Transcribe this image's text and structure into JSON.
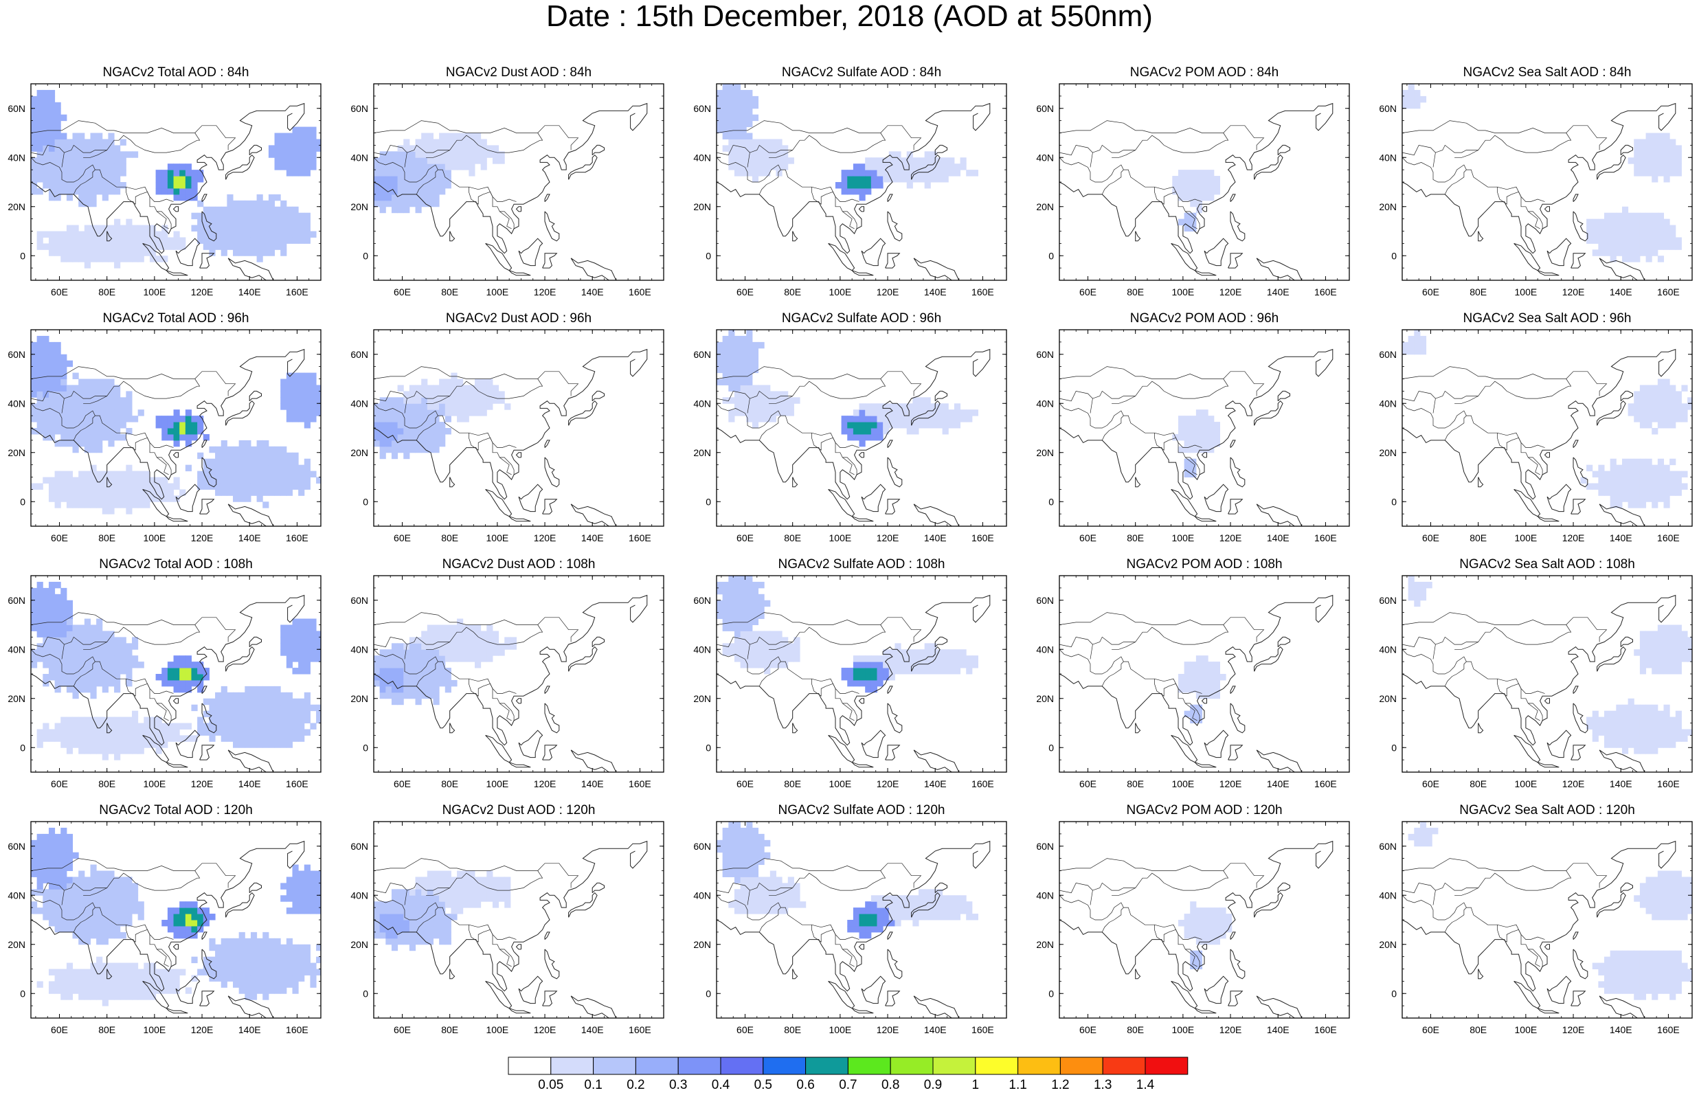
{
  "title": "Date : 15th December, 2018 (AOD at 550nm)",
  "map_extent": {
    "lon_min": 48,
    "lon_max": 170,
    "lat_min": -10,
    "lat_max": 70
  },
  "x_ticks": [
    "60E",
    "80E",
    "100E",
    "120E",
    "140E",
    "160E"
  ],
  "y_ticks": [
    "60N",
    "40N",
    "20N",
    "0"
  ],
  "columns": [
    "Total",
    "Dust",
    "Sulfate",
    "POM",
    "Sea Salt"
  ],
  "rows": [
    "84h",
    "96h",
    "108h",
    "120h"
  ],
  "panels": [
    {
      "title": "NGACv2 Total AOD : 84h",
      "species": "total",
      "hour": 84
    },
    {
      "title": "NGACv2 Dust AOD : 84h",
      "species": "dust",
      "hour": 84
    },
    {
      "title": "NGACv2 Sulfate AOD : 84h",
      "species": "sulfate",
      "hour": 84
    },
    {
      "title": "NGACv2 POM AOD : 84h",
      "species": "pom",
      "hour": 84
    },
    {
      "title": "NGACv2 Sea Salt AOD : 84h",
      "species": "seasalt",
      "hour": 84
    },
    {
      "title": "NGACv2 Total AOD : 96h",
      "species": "total",
      "hour": 96
    },
    {
      "title": "NGACv2 Dust AOD : 96h",
      "species": "dust",
      "hour": 96
    },
    {
      "title": "NGACv2 Sulfate AOD : 96h",
      "species": "sulfate",
      "hour": 96
    },
    {
      "title": "NGACv2 POM AOD : 96h",
      "species": "pom",
      "hour": 96
    },
    {
      "title": "NGACv2 Sea Salt AOD : 96h",
      "species": "seasalt",
      "hour": 96
    },
    {
      "title": "NGACv2 Total AOD : 108h",
      "species": "total",
      "hour": 108
    },
    {
      "title": "NGACv2 Dust AOD : 108h",
      "species": "dust",
      "hour": 108
    },
    {
      "title": "NGACv2 Sulfate AOD : 108h",
      "species": "sulfate",
      "hour": 108
    },
    {
      "title": "NGACv2 POM AOD : 108h",
      "species": "pom",
      "hour": 108
    },
    {
      "title": "NGACv2 Sea Salt AOD : 108h",
      "species": "seasalt",
      "hour": 108
    },
    {
      "title": "NGACv2 Total AOD : 120h",
      "species": "total",
      "hour": 120
    },
    {
      "title": "NGACv2 Dust AOD : 120h",
      "species": "dust",
      "hour": 120
    },
    {
      "title": "NGACv2 Sulfate AOD : 120h",
      "species": "sulfate",
      "hour": 120
    },
    {
      "title": "NGACv2 POM AOD : 120h",
      "species": "pom",
      "hour": 120
    },
    {
      "title": "NGACv2 Sea Salt  AOD : 120h",
      "species": "seasalt",
      "hour": 120
    }
  ],
  "colorbar": {
    "labels": [
      "0.05",
      "0.1",
      "0.2",
      "0.3",
      "0.4",
      "0.5",
      "0.6",
      "0.7",
      "0.8",
      "0.9",
      "1",
      "1.1",
      "1.2",
      "1.3",
      "1.4"
    ],
    "colors": [
      "#ffffff",
      "#d4dcfb",
      "#b6c6fa",
      "#98aefa",
      "#7d93f8",
      "#6470f3",
      "#1f6ef0",
      "#0f9a9a",
      "#5ce81e",
      "#96ec26",
      "#c5f23b",
      "#fdfd2a",
      "#fdbe12",
      "#fd8e0f",
      "#f83a14",
      "#f10f10"
    ]
  },
  "regions": {
    "total": [
      {
        "lon": 68,
        "lat": 36,
        "rlon": 22,
        "rlat": 14,
        "level": 2
      },
      {
        "lon": 52,
        "lat": 55,
        "rlon": 10,
        "rlat": 12,
        "level": 3
      },
      {
        "lon": 110,
        "lat": 30,
        "rlon": 10,
        "rlat": 7,
        "level": 4
      },
      {
        "lon": 110,
        "lat": 30,
        "rlon": 6,
        "rlat": 4,
        "level": 7
      },
      {
        "lon": 110,
        "lat": 30,
        "rlon": 3,
        "rlat": 2,
        "level": 10
      },
      {
        "lon": 140,
        "lat": 12,
        "rlon": 25,
        "rlat": 12,
        "level": 2
      },
      {
        "lon": 160,
        "lat": 42,
        "rlon": 10,
        "rlat": 10,
        "level": 3
      },
      {
        "lon": 80,
        "lat": 5,
        "rlon": 30,
        "rlat": 8,
        "level": 1
      }
    ],
    "dust": [
      {
        "lon": 60,
        "lat": 30,
        "rlon": 18,
        "rlat": 12,
        "level": 2
      },
      {
        "lon": 80,
        "lat": 42,
        "rlon": 22,
        "rlat": 8,
        "level": 1
      },
      {
        "lon": 52,
        "lat": 28,
        "rlon": 6,
        "rlat": 5,
        "level": 3
      }
    ],
    "sulfate": [
      {
        "lon": 108,
        "lat": 30,
        "rlon": 9,
        "rlat": 6,
        "level": 4
      },
      {
        "lon": 108,
        "lat": 30,
        "rlon": 5,
        "rlat": 3,
        "level": 7
      },
      {
        "lon": 130,
        "lat": 35,
        "rlon": 25,
        "rlat": 6,
        "level": 1
      },
      {
        "lon": 55,
        "lat": 58,
        "rlon": 10,
        "rlat": 12,
        "level": 2
      },
      {
        "lon": 65,
        "lat": 40,
        "rlon": 15,
        "rlat": 8,
        "level": 1
      }
    ],
    "pom": [
      {
        "lon": 105,
        "lat": 28,
        "rlon": 10,
        "rlat": 8,
        "level": 1
      },
      {
        "lon": 102,
        "lat": 14,
        "rlon": 3,
        "rlat": 4,
        "level": 2
      }
    ],
    "seasalt": [
      {
        "lon": 155,
        "lat": 40,
        "rlon": 12,
        "rlat": 10,
        "level": 1
      },
      {
        "lon": 145,
        "lat": 8,
        "rlon": 20,
        "rlat": 10,
        "level": 1
      },
      {
        "lon": 52,
        "lat": 64,
        "rlon": 5,
        "rlat": 5,
        "level": 1
      }
    ]
  }
}
